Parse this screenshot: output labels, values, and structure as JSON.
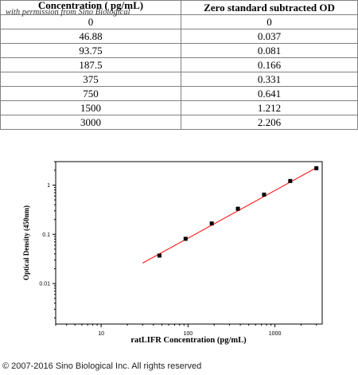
{
  "table": {
    "headers": [
      "Concentration ( pg/mL)",
      "Zero standard subtracted OD"
    ],
    "watermark": "with permission from Sino Biological",
    "rows": [
      [
        "0",
        "0"
      ],
      [
        "46.88",
        "0.037"
      ],
      [
        "93.75",
        "0.081"
      ],
      [
        "187.5",
        "0.166"
      ],
      [
        "375",
        "0.331"
      ],
      [
        "750",
        "0.641"
      ],
      [
        "1500",
        "1.212"
      ],
      [
        "3000",
        "2.206"
      ]
    ]
  },
  "chart_data": {
    "type": "scatter",
    "xlabel": "ratLIFR Concentration (pg/mL)",
    "ylabel": "Optical Density (450nm)",
    "xscale": "log",
    "yscale": "log",
    "xlim": [
      3,
      3500
    ],
    "ylim": [
      0.0015,
      3
    ],
    "xticks": [
      10,
      100,
      1000
    ],
    "xtick_labels": [
      "10",
      "100",
      "1000"
    ],
    "yticks": [
      0.01,
      0.1,
      1
    ],
    "ytick_labels": [
      "0.01",
      "0.1",
      "1"
    ],
    "points": [
      {
        "x": 46.88,
        "y": 0.037
      },
      {
        "x": 93.75,
        "y": 0.081
      },
      {
        "x": 187.5,
        "y": 0.166
      },
      {
        "x": 375,
        "y": 0.331
      },
      {
        "x": 750,
        "y": 0.641
      },
      {
        "x": 1500,
        "y": 1.212
      },
      {
        "x": 3000,
        "y": 2.206
      }
    ],
    "fit_line": {
      "x": [
        30,
        3000
      ],
      "y": [
        0.026,
        2.25
      ]
    },
    "colors": {
      "points": "#000000",
      "fit_line": "#ff0000"
    }
  },
  "footer": {
    "copyright": "© 2007-2016 Sino Biological Inc. All rights reserved"
  }
}
